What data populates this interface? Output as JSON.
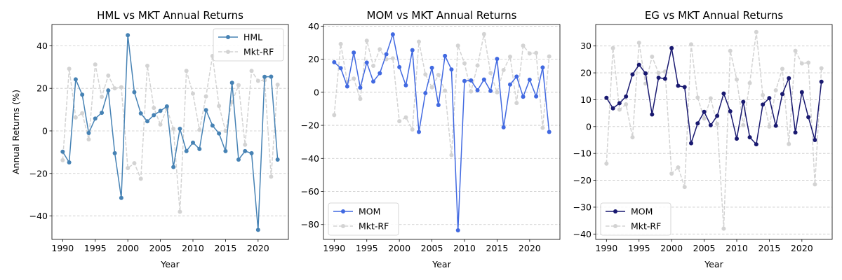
{
  "chart_data": [
    {
      "type": "line",
      "title": "HML vs MKT Annual Returns",
      "xlabel": "Year",
      "ylabel": "Annual Returns (%)",
      "xlim": [
        1988.35,
        2024.65
      ],
      "ylim": [
        -51,
        50
      ],
      "xticks": [
        1990,
        1995,
        2000,
        2005,
        2010,
        2015,
        2020
      ],
      "yticks": [
        -40,
        -20,
        0,
        20,
        40
      ],
      "grid": "y-dashed",
      "legend": "upper right",
      "x": [
        1990,
        1991,
        1992,
        1993,
        1994,
        1995,
        1996,
        1997,
        1998,
        1999,
        2000,
        2001,
        2002,
        2003,
        2004,
        2005,
        2006,
        2007,
        2008,
        2009,
        2010,
        2011,
        2012,
        2013,
        2014,
        2015,
        2016,
        2017,
        2018,
        2019,
        2020,
        2021,
        2022,
        2023
      ],
      "series": [
        {
          "name": "HML",
          "color": "#4682b4",
          "style": "solid",
          "values": [
            -9.8,
            -14.8,
            24.2,
            17.0,
            -1.0,
            5.8,
            8.5,
            19.0,
            -10.5,
            -31.5,
            45.0,
            18.2,
            8.2,
            4.5,
            7.4,
            9.4,
            11.5,
            -17.0,
            1.0,
            -9.5,
            -5.5,
            -8.5,
            9.8,
            2.5,
            -1.2,
            -9.5,
            22.6,
            -13.5,
            -9.5,
            -10.5,
            -46.5,
            25.4,
            25.5,
            -13.5
          ]
        },
        {
          "name": "Mkt-RF",
          "color": "#d3d3d3",
          "style": "dashed",
          "values": [
            -13.8,
            29.2,
            6.3,
            8.3,
            -4.0,
            31.2,
            16.0,
            26.0,
            20.0,
            20.5,
            -17.5,
            -15.2,
            -22.5,
            30.6,
            10.8,
            3.0,
            10.5,
            1.0,
            -38.0,
            28.2,
            17.5,
            0.5,
            16.2,
            35.2,
            11.7,
            0.0,
            13.5,
            21.5,
            -6.5,
            28.2,
            23.5,
            23.8,
            -21.5,
            21.7
          ]
        }
      ]
    },
    {
      "type": "line",
      "title": "MOM vs MKT Annual Returns",
      "xlabel": "Year",
      "ylabel": "",
      "xlim": [
        1988.35,
        2024.65
      ],
      "ylim": [
        -89,
        41
      ],
      "xticks": [
        1990,
        1995,
        2000,
        2005,
        2010,
        2015,
        2020
      ],
      "yticks": [
        -80,
        -60,
        -40,
        -20,
        0,
        20,
        40
      ],
      "grid": "y-dashed",
      "legend": "lower left",
      "x": [
        1990,
        1991,
        1992,
        1993,
        1994,
        1995,
        1996,
        1997,
        1998,
        1999,
        2000,
        2001,
        2002,
        2003,
        2004,
        2005,
        2006,
        2007,
        2008,
        2009,
        2010,
        2011,
        2012,
        2013,
        2014,
        2015,
        2016,
        2017,
        2018,
        2019,
        2020,
        2021,
        2022,
        2023
      ],
      "series": [
        {
          "name": "MOM",
          "color": "#4169e1",
          "style": "solid",
          "values": [
            18.2,
            14.6,
            3.5,
            24.0,
            2.8,
            18.0,
            6.5,
            11.5,
            23.0,
            35.0,
            15.2,
            4.2,
            25.5,
            -24.0,
            -0.5,
            14.8,
            -7.7,
            22.0,
            13.8,
            -83.5,
            6.8,
            7.2,
            1.2,
            7.7,
            0.8,
            20.2,
            -21.2,
            4.7,
            9.5,
            -2.7,
            7.6,
            -2.5,
            15.0,
            -24.0
          ]
        },
        {
          "name": "Mkt-RF",
          "color": "#d3d3d3",
          "style": "dashed",
          "values": [
            -13.8,
            29.2,
            6.3,
            8.3,
            -4.0,
            31.2,
            16.0,
            26.0,
            20.0,
            20.5,
            -17.5,
            -15.2,
            -22.5,
            30.6,
            10.8,
            3.0,
            10.5,
            1.0,
            -38.0,
            28.2,
            17.5,
            0.5,
            16.2,
            35.2,
            11.7,
            0.0,
            13.5,
            21.5,
            -6.5,
            28.2,
            23.5,
            23.8,
            -21.5,
            21.7
          ]
        }
      ]
    },
    {
      "type": "line",
      "title": "EG vs MKT Annual Returns",
      "xlabel": "Year",
      "ylabel": "",
      "xlim": [
        1988.35,
        2024.65
      ],
      "ylim": [
        -42,
        38
      ],
      "xticks": [
        1990,
        1995,
        2000,
        2005,
        2010,
        2015,
        2020
      ],
      "yticks": [
        -40,
        -30,
        -20,
        -10,
        0,
        10,
        20,
        30
      ],
      "grid": "y-dashed",
      "legend": "lower left",
      "x": [
        1990,
        1991,
        1992,
        1993,
        1994,
        1995,
        1996,
        1997,
        1998,
        1999,
        2000,
        2001,
        2002,
        2003,
        2004,
        2005,
        2006,
        2007,
        2008,
        2009,
        2010,
        2011,
        2012,
        2013,
        2014,
        2015,
        2016,
        2017,
        2018,
        2019,
        2020,
        2021,
        2022,
        2023
      ],
      "series": [
        {
          "name": "MOM",
          "color": "#191970",
          "style": "solid",
          "values": [
            10.7,
            6.8,
            8.7,
            11.2,
            19.4,
            23.0,
            19.8,
            4.5,
            18.2,
            17.8,
            29.2,
            15.2,
            14.7,
            -6.2,
            1.2,
            5.5,
            0.5,
            4.0,
            12.3,
            5.7,
            -4.5,
            9.2,
            -4.0,
            -6.6,
            8.2,
            10.6,
            0.3,
            12.1,
            18.0,
            -2.2,
            12.8,
            3.5,
            -5.0,
            16.7
          ]
        },
        {
          "name": "Mkt-RF",
          "color": "#d3d3d3",
          "style": "dashed",
          "values": [
            -13.8,
            29.2,
            6.3,
            8.3,
            -4.0,
            31.2,
            16.0,
            26.0,
            20.0,
            20.5,
            -17.5,
            -15.2,
            -22.5,
            30.6,
            10.8,
            3.0,
            10.5,
            1.0,
            -38.0,
            28.2,
            17.5,
            0.5,
            16.2,
            35.2,
            11.7,
            0.0,
            13.5,
            21.5,
            -6.5,
            28.2,
            23.5,
            23.8,
            -21.5,
            21.7
          ]
        }
      ]
    }
  ]
}
